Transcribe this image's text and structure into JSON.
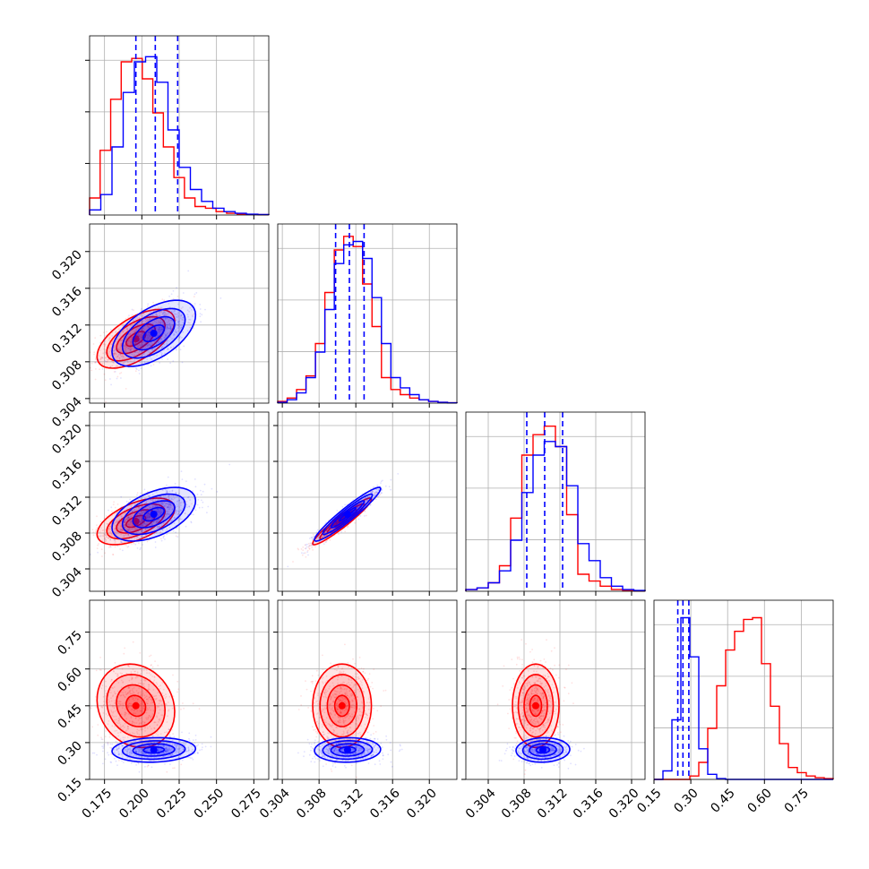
{
  "colors": {
    "series_a": "#ff0000",
    "series_b": "#0000ff",
    "grid": "#b0b0b0",
    "axes": "#000000",
    "background": "#ffffff"
  },
  "chart_data": {
    "type": "corner",
    "grid": true,
    "parameters": [
      {
        "range": [
          0.165,
          0.285
        ],
        "ticks": [
          "0.175",
          "0.200",
          "0.225",
          "0.250",
          "0.275"
        ]
      },
      {
        "range": [
          0.3035,
          0.323
        ],
        "ticks": [
          "0.304",
          "0.308",
          "0.312",
          "0.316",
          "0.320"
        ]
      },
      {
        "range": [
          0.3015,
          0.3215
        ],
        "ticks": [
          "0.304",
          "0.308",
          "0.312",
          "0.316",
          "0.320"
        ]
      },
      {
        "range": [
          0.15,
          0.88
        ],
        "ticks": [
          "0.15",
          "0.30",
          "0.45",
          "0.60",
          "0.75"
        ]
      }
    ],
    "series": [
      {
        "color": "#ff0000",
        "histograms": [
          [
            0.1,
            0.38,
            0.68,
            0.9,
            0.92,
            0.8,
            0.6,
            0.4,
            0.22,
            0.1,
            0.05,
            0.04,
            0.02,
            0.01,
            0.005,
            0.004,
            0.002
          ],
          [
            0.01,
            0.03,
            0.08,
            0.16,
            0.35,
            0.65,
            0.9,
            0.98,
            0.92,
            0.7,
            0.45,
            0.15,
            0.08,
            0.05,
            0.03,
            0.02,
            0.01,
            0.005,
            0.002
          ],
          [
            0.01,
            0.02,
            0.05,
            0.15,
            0.43,
            0.8,
            0.92,
            0.97,
            0.85,
            0.45,
            0.1,
            0.06,
            0.03,
            0.01,
            0.005,
            0.002
          ],
          [
            0.0,
            0.0,
            0.0,
            0.0,
            0.02,
            0.1,
            0.3,
            0.55,
            0.76,
            0.87,
            0.94,
            0.95,
            0.68,
            0.43,
            0.21,
            0.07,
            0.04,
            0.02,
            0.01,
            0.005
          ]
        ],
        "centers": [
          0.196,
          0.3105,
          0.3093,
          0.45
        ],
        "spreads": [
          0.013,
          0.0016,
          0.0013,
          0.085
        ],
        "correlations": [
          [
            1,
            0.6,
            0.55,
            -0.15
          ],
          [
            0.6,
            1,
            0.95,
            0.0
          ],
          [
            0.55,
            0.95,
            1,
            0.0
          ],
          [
            -0.15,
            0.0,
            0.0,
            1
          ]
        ]
      },
      {
        "color": "#0000ff",
        "histograms": [
          [
            0.03,
            0.12,
            0.4,
            0.72,
            0.9,
            0.93,
            0.78,
            0.5,
            0.28,
            0.15,
            0.08,
            0.04,
            0.02,
            0.01,
            0.005,
            0.003
          ],
          [
            0.005,
            0.02,
            0.06,
            0.15,
            0.3,
            0.55,
            0.82,
            0.93,
            0.95,
            0.85,
            0.62,
            0.35,
            0.15,
            0.09,
            0.05,
            0.02,
            0.01,
            0.005,
            0.002
          ],
          [
            0.01,
            0.02,
            0.05,
            0.12,
            0.3,
            0.58,
            0.8,
            0.88,
            0.85,
            0.62,
            0.28,
            0.18,
            0.08,
            0.03,
            0.01,
            0.005
          ],
          [
            0.0,
            0.05,
            0.35,
            0.95,
            0.72,
            0.18,
            0.03,
            0.005,
            0.0,
            0.0,
            0.0,
            0.0,
            0.0,
            0.0,
            0.0,
            0.0,
            0.0,
            0.0,
            0.0,
            0.0
          ]
        ],
        "centers": [
          0.208,
          0.3111,
          0.3101,
          0.27
        ],
        "spreads": [
          0.014,
          0.0018,
          0.0015,
          0.025
        ],
        "correlations": [
          [
            1,
            0.55,
            0.5,
            0.1
          ],
          [
            0.55,
            1,
            0.95,
            0.05
          ],
          [
            0.5,
            0.95,
            1,
            0.05
          ],
          [
            0.1,
            0.05,
            0.05,
            1
          ]
        ]
      }
    ],
    "quantiles": {
      "color": "#0000ff",
      "values": [
        [
          0.196,
          0.209,
          0.224
        ],
        [
          0.3098,
          0.3113,
          0.3129
        ],
        [
          0.3083,
          0.3103,
          0.3123
        ],
        [
          0.247,
          0.268,
          0.292
        ]
      ]
    }
  }
}
